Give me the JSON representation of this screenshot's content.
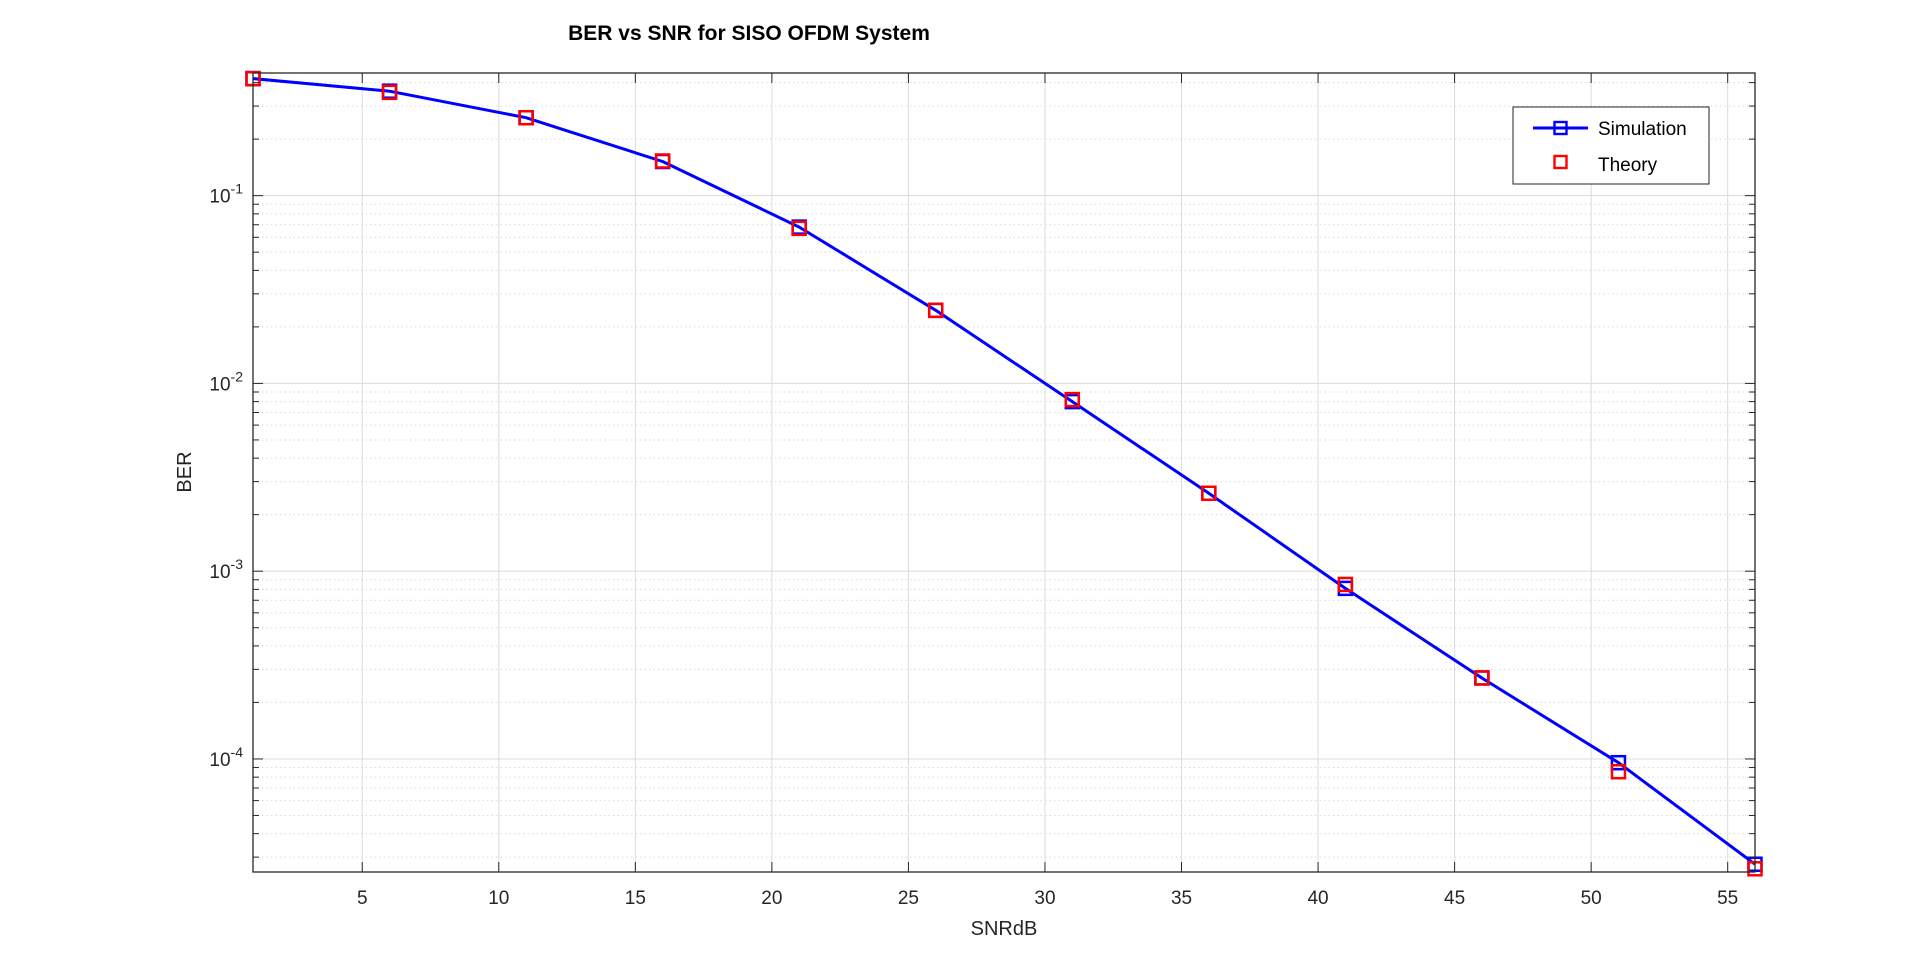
{
  "chart_data": {
    "type": "line",
    "title": "BER vs SNR for SISO OFDM System",
    "xlabel": "SNRdB",
    "ylabel": "BER",
    "xlim": [
      1,
      56
    ],
    "ylim": [
      2.5e-05,
      0.45
    ],
    "yscale": "log",
    "grid": true,
    "minor_grid": true,
    "legend_position": "top-right",
    "x_ticks": [
      5,
      10,
      15,
      20,
      25,
      30,
      35,
      40,
      45,
      50,
      55
    ],
    "x_tick_labels": [
      "5",
      "10",
      "15",
      "20",
      "25",
      "30",
      "35",
      "40",
      "45",
      "50",
      "55"
    ],
    "y_ticks": [
      {
        "value": 0.1,
        "base": "10",
        "exp": "-1"
      },
      {
        "value": 0.01,
        "base": "10",
        "exp": "-2"
      },
      {
        "value": 0.001,
        "base": "10",
        "exp": "-3"
      },
      {
        "value": 0.0001,
        "base": "10",
        "exp": "-4"
      }
    ],
    "x": [
      1,
      6,
      11,
      16,
      21,
      26,
      31,
      36,
      41,
      46,
      51,
      56
    ],
    "series": [
      {
        "name": "Simulation",
        "style": "line-square",
        "color": "#0000ff",
        "values": [
          0.42,
          0.36,
          0.26,
          0.152,
          0.068,
          0.0245,
          0.008,
          0.0026,
          0.00081,
          0.00027,
          9.55e-05,
          2.75e-05
        ]
      },
      {
        "name": "Theory",
        "style": "square",
        "color": "#ff0000",
        "values": [
          0.42,
          0.355,
          0.26,
          0.153,
          0.067,
          0.0245,
          0.0082,
          0.0026,
          0.00085,
          0.00027,
          8.55e-05,
          2.6e-05
        ]
      }
    ]
  }
}
